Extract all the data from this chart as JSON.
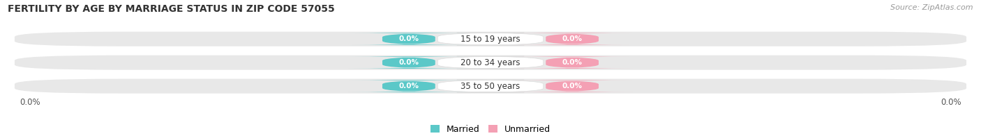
{
  "title": "FERTILITY BY AGE BY MARRIAGE STATUS IN ZIP CODE 57055",
  "source": "Source: ZipAtlas.com",
  "categories": [
    "15 to 19 years",
    "20 to 34 years",
    "35 to 50 years"
  ],
  "married_values": [
    0.0,
    0.0,
    0.0
  ],
  "unmarried_values": [
    0.0,
    0.0,
    0.0
  ],
  "married_color": "#5bc8c8",
  "unmarried_color": "#f4a0b4",
  "bar_bg_color": "#e8e8e8",
  "center_box_color": "#ffffff",
  "background_color": "#ffffff",
  "label_text_color": "#ffffff",
  "category_text_color": "#333333",
  "legend_married": "Married",
  "legend_unmarried": "Unmarried",
  "axis_label_left": "0.0%",
  "axis_label_right": "0.0%",
  "title_fontsize": 10,
  "source_fontsize": 8
}
